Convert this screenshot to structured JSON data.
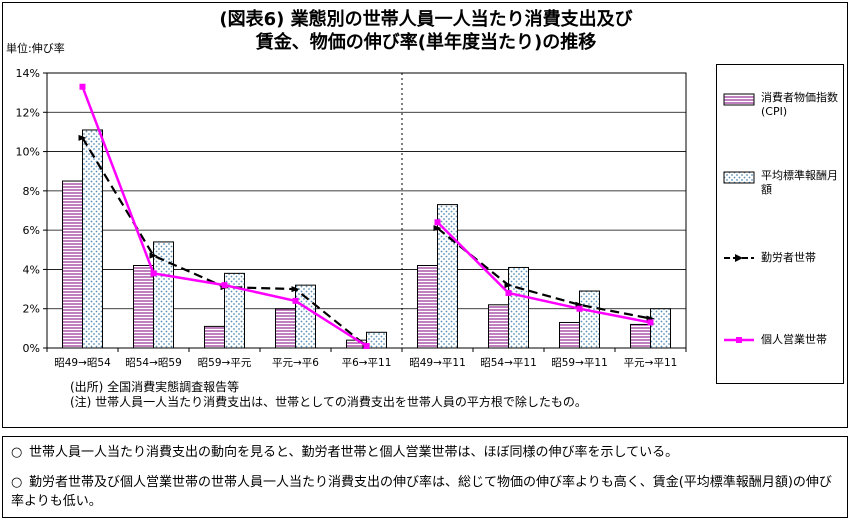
{
  "title_line1": "(図表6) 業態別の世帯人員一人当たり消費支出及び",
  "title_line2": "賃金、物価の伸び率(単年度当たり)の推移",
  "unit_label": "単位:伸び率",
  "chart_data": {
    "type": "bar",
    "categories": [
      "昭49→昭54",
      "昭54→昭59",
      "昭59→平元",
      "平元→平6",
      "平6→平11",
      "昭49→平11",
      "昭54→平11",
      "昭59→平11",
      "平元→平11"
    ],
    "ylim": [
      0,
      14
    ],
    "y_ticks": [
      "0%",
      "2%",
      "4%",
      "6%",
      "8%",
      "10%",
      "12%",
      "14%"
    ],
    "grid": true,
    "legend_position": "right",
    "separator_after_category": 4,
    "series": [
      {
        "name": "消費者物価指数(CPI)",
        "kind": "bar",
        "pattern": "horizontal-stripes",
        "color": "#800080",
        "values": [
          8.5,
          4.2,
          1.1,
          2.0,
          0.4,
          4.2,
          2.2,
          1.3,
          1.2
        ]
      },
      {
        "name": "平均標準報酬月額",
        "kind": "bar",
        "pattern": "dots",
        "color": "#5a8fb5",
        "values": [
          11.1,
          5.4,
          3.8,
          3.2,
          0.8,
          7.3,
          4.1,
          2.9,
          2.0
        ]
      },
      {
        "name": "勤労者世帯",
        "kind": "line",
        "style": "dashed",
        "color": "#000000",
        "values": [
          10.7,
          4.7,
          3.1,
          3.0,
          0.1,
          6.1,
          3.2,
          2.2,
          1.5
        ]
      },
      {
        "name": "個人営業世帯",
        "kind": "line",
        "style": "solid",
        "color": "#ff00ff",
        "values": [
          13.3,
          3.8,
          3.2,
          2.4,
          0.1,
          6.4,
          2.8,
          2.0,
          1.3
        ]
      }
    ]
  },
  "notes": {
    "source": "(出所) 全国消費実態調査報告等",
    "note": "(注) 世帯人員一人当たり消費支出は、世帯としての消費支出を世帯人員の平方根で除したもの。"
  },
  "summary": [
    {
      "bullet": "○",
      "text": "世帯人員一人当たり消費支出の動向を見ると、勤労者世帯と個人営業世帯は、ほぼ同様の伸び率を示している。"
    },
    {
      "bullet": "○",
      "text": "勤労者世帯及び個人営業世帯の世帯人員一人当たり消費支出の伸び率は、総じて物価の伸び率よりも高く、賃金(平均標準報酬月額)の伸び率よりも低い。"
    }
  ]
}
